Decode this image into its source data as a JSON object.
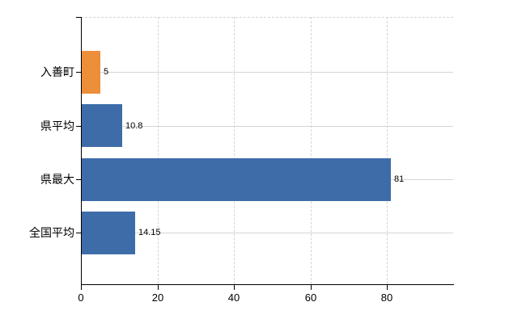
{
  "chart_data": {
    "type": "bar",
    "orientation": "horizontal",
    "title": "",
    "xlabel": "",
    "ylabel": "",
    "categories": [
      "入善町",
      "県平均",
      "県最大",
      "全国平均"
    ],
    "values": [
      5,
      10.8,
      81,
      14.15
    ],
    "value_labels": [
      "5",
      "10.8",
      "81",
      "14.15"
    ],
    "bar_colors": [
      "#ec8e3a",
      "#3e6ca9",
      "#3e6ca9",
      "#3e6ca9"
    ],
    "highlighted_category": "入善町",
    "x_ticks": [
      "0",
      "20",
      "40",
      "60",
      "80"
    ],
    "x_tick_values": [
      0,
      20,
      40,
      60,
      80
    ],
    "xlim": [
      0,
      97.4
    ],
    "grid": "on",
    "legend": "none",
    "colors": {
      "bar_blue": "#3e6ca9",
      "bar_orange": "#ec8e3a",
      "axis": "#000000",
      "gridline_h": "#d4d7d0",
      "gridline_v": "#d6d4d6",
      "background": "#ffffff",
      "text": "#000000"
    }
  }
}
